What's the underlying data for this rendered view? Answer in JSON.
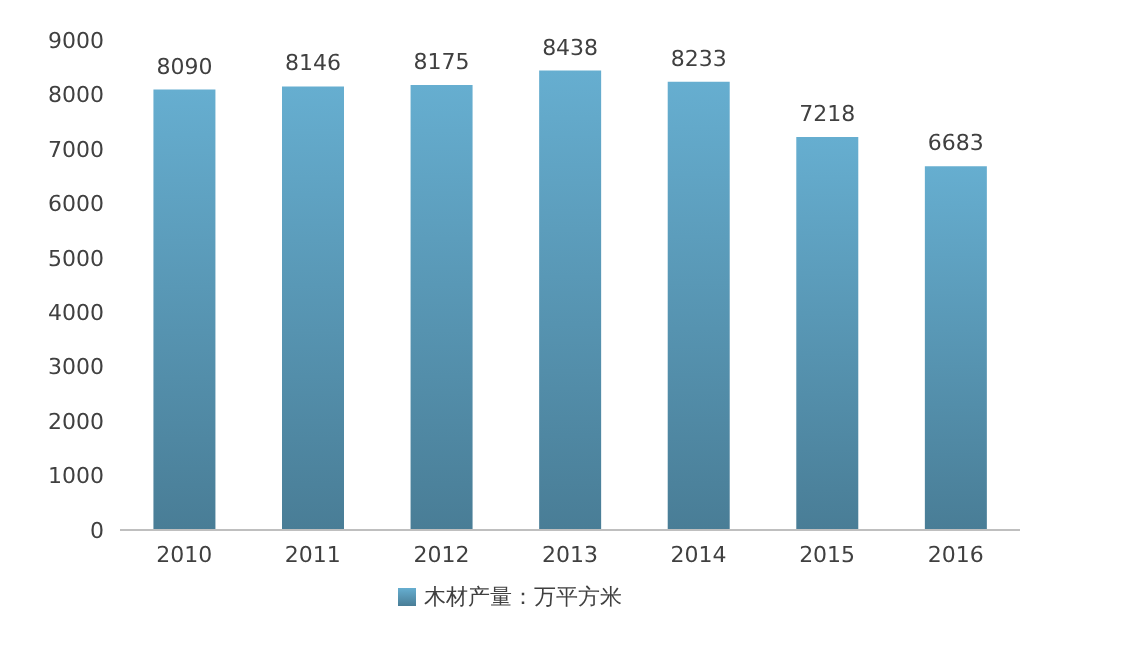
{
  "chart_data": {
    "type": "bar",
    "categories": [
      "2010",
      "2011",
      "2012",
      "2013",
      "2014",
      "2015",
      "2016"
    ],
    "series": [
      {
        "name": "木材产量：万平方米",
        "color": "#66aed0",
        "values": [
          8090,
          8146,
          8175,
          8438,
          8233,
          7218,
          6683
        ]
      }
    ],
    "ylim": [
      0,
      9000
    ],
    "yticks": [
      0,
      1000,
      2000,
      3000,
      4000,
      5000,
      6000,
      7000,
      8000,
      9000
    ],
    "grid": false,
    "legend": "bottom",
    "data_labels": true
  }
}
